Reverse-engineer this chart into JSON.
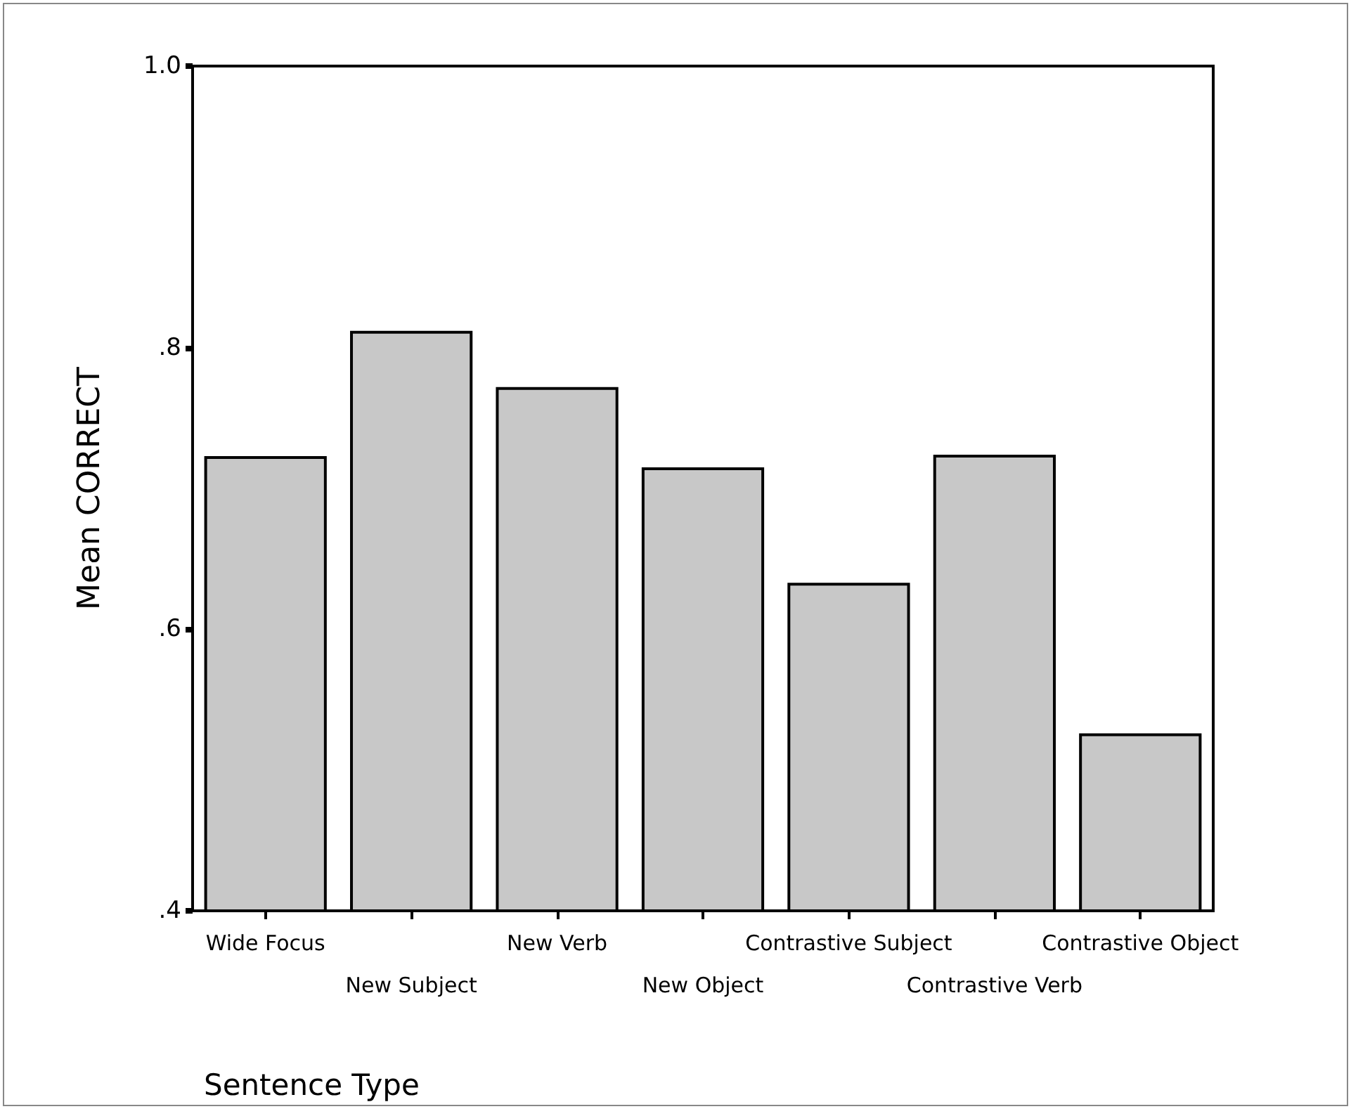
{
  "chart_data": {
    "type": "bar",
    "xlabel": "Sentence Type",
    "ylabel": "Mean CORRECT",
    "categories": [
      "Wide Focus",
      "New Subject",
      "New Verb",
      "New Object",
      "Contrastive Subject",
      "Contrastive Verb",
      "Contrastive Object"
    ],
    "values": [
      0.723,
      0.812,
      0.772,
      0.715,
      0.633,
      0.724,
      0.526
    ],
    "color": "#c8c8c8",
    "ylim": [
      0.4,
      1.0
    ],
    "yticks": [
      {
        "value": 0.4,
        "label": ".4"
      },
      {
        "value": 0.6,
        "label": ".6"
      },
      {
        "value": 0.8,
        "label": ".8"
      },
      {
        "value": 1.0,
        "label": "1.0"
      }
    ],
    "grid": false
  }
}
